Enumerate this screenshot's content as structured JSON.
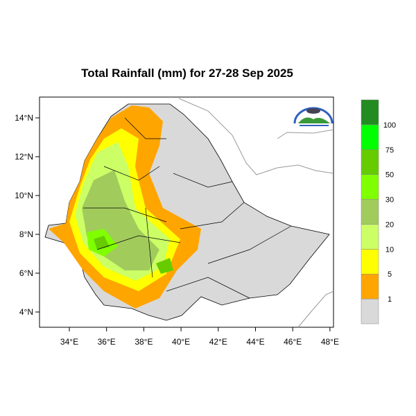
{
  "title": "Total Rainfall (mm) for 27-28 Sep 2025",
  "x_ticks": [
    "34°E",
    "36°E",
    "38°E",
    "40°E",
    "42°E",
    "44°E",
    "46°E",
    "48°E"
  ],
  "y_ticks": [
    "14°N",
    "12°N",
    "10°N",
    "8°N",
    "6°N",
    "4°N"
  ],
  "legend": {
    "colors": [
      "#d9d9d9",
      "#ffa500",
      "#ffff00",
      "#ccff66",
      "#a1cc5c",
      "#80ff00",
      "#66cc00",
      "#00ff00",
      "#228b22"
    ],
    "labels": [
      "1",
      "5",
      "10",
      "20",
      "30",
      "50",
      "75",
      "100"
    ]
  },
  "colors": {
    "no_rain": "#d9d9d9",
    "land_border": "#000000",
    "coast": "#999999"
  }
}
